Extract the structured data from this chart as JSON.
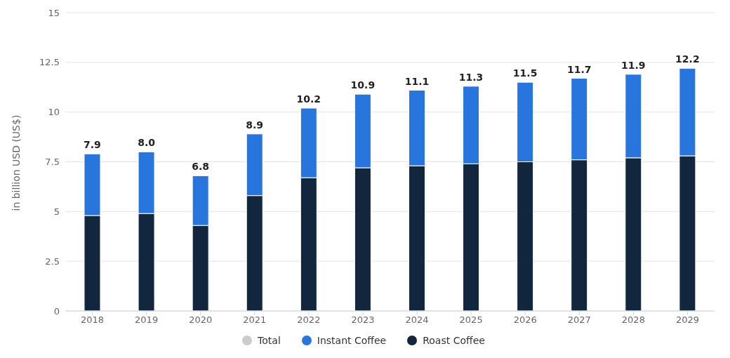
{
  "chart_data": {
    "type": "bar",
    "stacked": true,
    "ylabel": "in billion USD (US$)",
    "categories": [
      "2018",
      "2019",
      "2020",
      "2021",
      "2022",
      "2023",
      "2024",
      "2025",
      "2026",
      "2027",
      "2028",
      "2029"
    ],
    "series": [
      {
        "name": "Roast Coffee",
        "color": "#12263d",
        "values": [
          4.8,
          4.9,
          4.3,
          5.8,
          6.7,
          7.2,
          7.3,
          7.4,
          7.5,
          7.6,
          7.7,
          7.8
        ]
      },
      {
        "name": "Instant Coffee",
        "color": "#2876dd",
        "values": [
          3.1,
          3.1,
          2.5,
          3.1,
          3.5,
          3.7,
          3.8,
          3.9,
          4.0,
          4.1,
          4.2,
          4.4
        ]
      },
      {
        "name": "Total",
        "color": "#cccccc",
        "values": [
          null,
          null,
          null,
          null,
          null,
          null,
          null,
          null,
          null,
          null,
          null,
          null
        ]
      }
    ],
    "totals": [
      "7.9",
      "8.0",
      "6.8",
      "8.9",
      "10.2",
      "10.9",
      "11.1",
      "11.3",
      "11.5",
      "11.7",
      "11.9",
      "12.2"
    ],
    "ylim": [
      0,
      15
    ],
    "yticks": [
      0,
      2.5,
      5,
      7.5,
      10,
      12.5,
      15
    ],
    "grid": "y",
    "legend": "bottom"
  }
}
